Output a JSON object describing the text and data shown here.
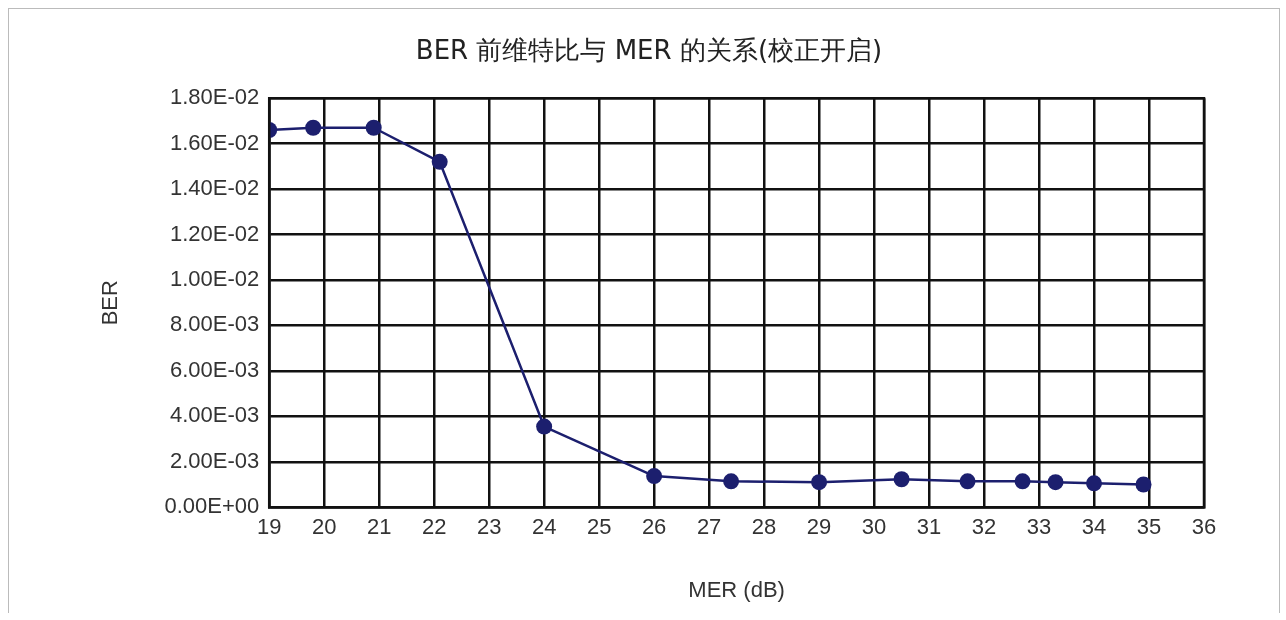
{
  "chart_data": {
    "type": "line",
    "title": "BER 前维特比与 MER 的关系(校正开启)",
    "xlabel": "MER (dB)",
    "ylabel": "BER",
    "x": [
      19,
      19.8,
      20.9,
      22.1,
      24,
      26,
      27.4,
      29,
      30.5,
      31.7,
      32.7,
      33.3,
      34,
      34.9
    ],
    "series": [
      {
        "color": "#1c1f6e",
        "values": [
          0.0166,
          0.0167,
          0.0167,
          0.0152,
          0.00355,
          0.00137,
          0.00114,
          0.0011,
          0.00123,
          0.00114,
          0.00114,
          0.0011,
          0.00105,
          0.001
        ]
      }
    ],
    "xlim": [
      19,
      36
    ],
    "xticks": [
      19,
      20,
      21,
      22,
      23,
      24,
      25,
      26,
      27,
      28,
      29,
      30,
      31,
      32,
      33,
      34,
      35,
      36
    ],
    "ylim": [
      0,
      0.018
    ],
    "yticks": [
      {
        "value": 0,
        "label": "0.00E+00"
      },
      {
        "value": 0.002,
        "label": "2.00E-03"
      },
      {
        "value": 0.004,
        "label": "4.00E-03"
      },
      {
        "value": 0.006,
        "label": "6.00E-03"
      },
      {
        "value": 0.008,
        "label": "8.00E-03"
      },
      {
        "value": 0.01,
        "label": "1.00E-02"
      },
      {
        "value": 0.012,
        "label": "1.20E-02"
      },
      {
        "value": 0.014,
        "label": "1.40E-02"
      },
      {
        "value": 0.016,
        "label": "1.60E-02"
      },
      {
        "value": 0.018,
        "label": "1.80E-02"
      }
    ],
    "grid": true,
    "legend": false,
    "marker": "circle",
    "line_style": "solid"
  }
}
